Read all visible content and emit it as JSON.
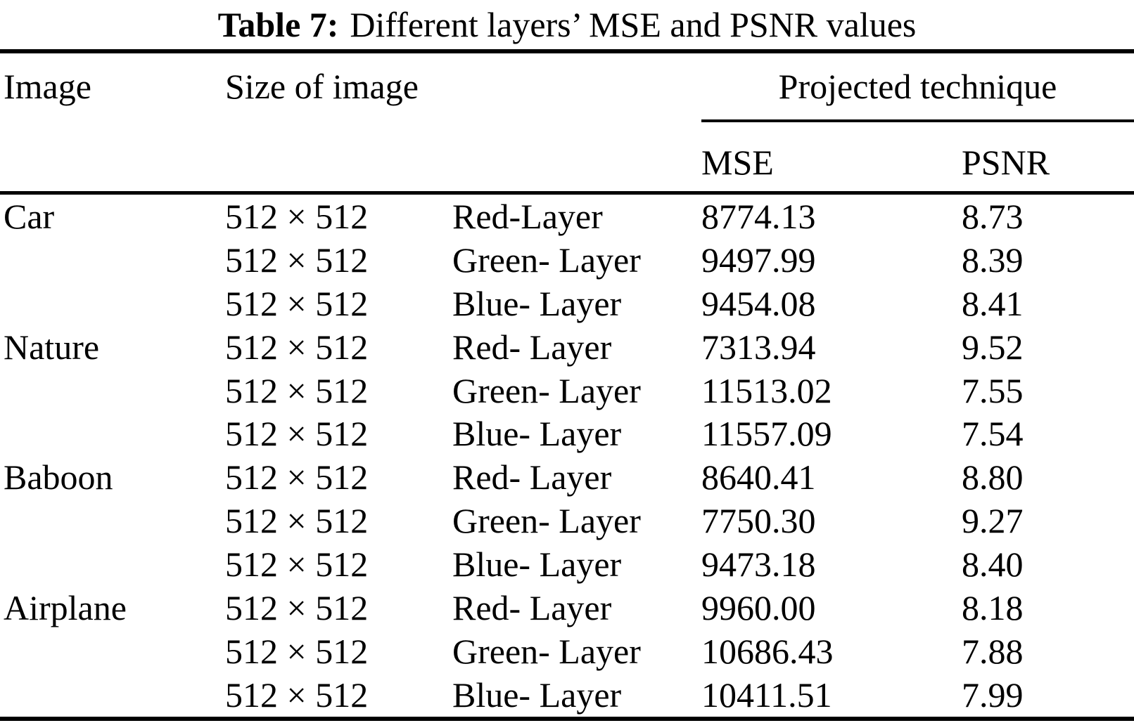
{
  "caption": {
    "label": "Table 7:",
    "text": "Different layers’ MSE and PSNR values"
  },
  "header": {
    "image": "Image",
    "size": "Size of image",
    "group": "Projected technique",
    "mse": "MSE",
    "psnr": "PSNR"
  },
  "table_rows": [
    {
      "image": "Car",
      "size": "512 × 512",
      "layer": "Red-Layer",
      "mse": "8774.13",
      "psnr": "8.73"
    },
    {
      "image": "",
      "size": "512 × 512",
      "layer": "Green- Layer",
      "mse": "9497.99",
      "psnr": "8.39"
    },
    {
      "image": "",
      "size": "512 × 512",
      "layer": "Blue- Layer",
      "mse": "9454.08",
      "psnr": "8.41"
    },
    {
      "image": "Nature",
      "size": "512 × 512",
      "layer": "Red- Layer",
      "mse": "7313.94",
      "psnr": "9.52"
    },
    {
      "image": "",
      "size": "512 × 512",
      "layer": "Green- Layer",
      "mse": "11513.02",
      "psnr": "7.55"
    },
    {
      "image": "",
      "size": "512 × 512",
      "layer": "Blue- Layer",
      "mse": "11557.09",
      "psnr": "7.54"
    },
    {
      "image": "Baboon",
      "size": "512 × 512",
      "layer": "Red- Layer",
      "mse": "8640.41",
      "psnr": "8.80"
    },
    {
      "image": "",
      "size": "512 × 512",
      "layer": "Green- Layer",
      "mse": "7750.30",
      "psnr": "9.27"
    },
    {
      "image": "",
      "size": "512 × 512",
      "layer": "Blue- Layer",
      "mse": "9473.18",
      "psnr": "8.40"
    },
    {
      "image": "Airplane",
      "size": "512 × 512",
      "layer": "Red- Layer",
      "mse": "9960.00",
      "psnr": "8.18"
    },
    {
      "image": "",
      "size": "512 × 512",
      "layer": "Green- Layer",
      "mse": "10686.43",
      "psnr": "7.88"
    },
    {
      "image": "",
      "size": "512 × 512",
      "layer": "Blue- Layer",
      "mse": "10411.51",
      "psnr": "7.99"
    }
  ],
  "colors": {
    "text": "#000000",
    "rule": "#000000",
    "background": "#ffffff"
  }
}
